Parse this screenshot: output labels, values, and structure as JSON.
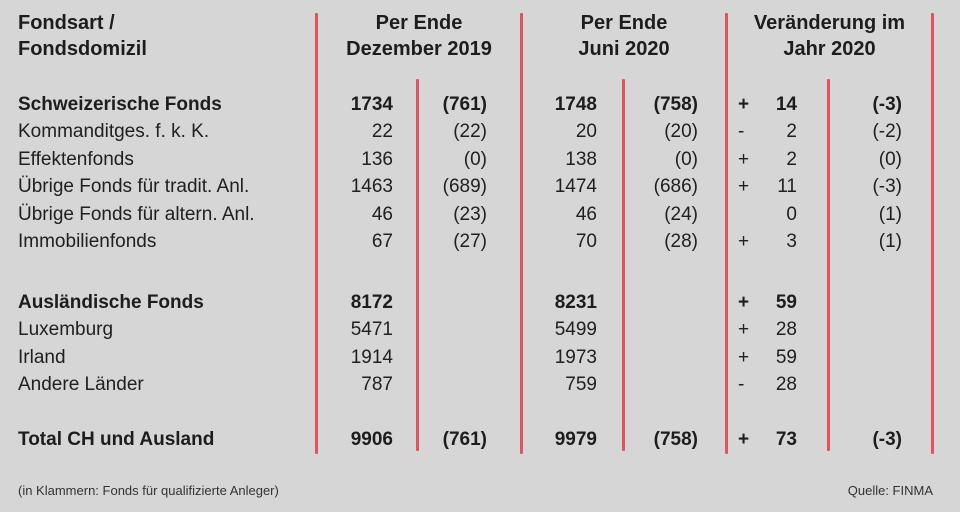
{
  "page": {
    "background_color": "#d5d6d5",
    "divider_color": "#e05460"
  },
  "header": {
    "label_line1": "Fondsart /",
    "label_line2": "Fondsdomizil",
    "dec_line1": "Per Ende",
    "dec_line2": "Dezember 2019",
    "jun_line1": "Per Ende",
    "jun_line2": "Juni 2020",
    "chg_line1": "Veränderung im",
    "chg_line2": "Jahr 2020"
  },
  "table": {
    "sections": [
      {
        "name": "schweizerische-fonds",
        "rows": [
          {
            "label": "Schweizerische Fonds",
            "bold": true,
            "dec_val": "1734",
            "dec_par": "(761)",
            "jun_val": "1748",
            "jun_par": "(758)",
            "chg_sign": "+",
            "chg_val": "14",
            "chg_par": "(-3)"
          },
          {
            "label": "Kommanditges. f. k. K.",
            "bold": false,
            "dec_val": "22",
            "dec_par": "(22)",
            "jun_val": "20",
            "jun_par": "(20)",
            "chg_sign": "-",
            "chg_val": "2",
            "chg_par": "(-2)"
          },
          {
            "label": "Effektenfonds",
            "bold": false,
            "dec_val": "136",
            "dec_par": "(0)",
            "jun_val": "138",
            "jun_par": "(0)",
            "chg_sign": "+",
            "chg_val": "2",
            "chg_par": "(0)"
          },
          {
            "label": "Übrige Fonds für tradit. Anl.",
            "bold": false,
            "dec_val": "1463",
            "dec_par": "(689)",
            "jun_val": "1474",
            "jun_par": "(686)",
            "chg_sign": "+",
            "chg_val": "11",
            "chg_par": "(-3)"
          },
          {
            "label": "Übrige Fonds für altern. Anl.",
            "bold": false,
            "dec_val": "46",
            "dec_par": "(23)",
            "jun_val": "46",
            "jun_par": "(24)",
            "chg_sign": "",
            "chg_val": "0",
            "chg_par": "(1)"
          },
          {
            "label": "Immobilienfonds",
            "bold": false,
            "dec_val": "67",
            "dec_par": "(27)",
            "jun_val": "70",
            "jun_par": "(28)",
            "chg_sign": "+",
            "chg_val": "3",
            "chg_par": "(1)"
          }
        ]
      },
      {
        "name": "auslaendische-fonds",
        "rows": [
          {
            "label": "Ausländische Fonds",
            "bold": true,
            "dec_val": "8172",
            "dec_par": "",
            "jun_val": "8231",
            "jun_par": "",
            "chg_sign": "+",
            "chg_val": "59",
            "chg_par": ""
          },
          {
            "label": "Luxemburg",
            "bold": false,
            "dec_val": "5471",
            "dec_par": "",
            "jun_val": "5499",
            "jun_par": "",
            "chg_sign": "+",
            "chg_val": "28",
            "chg_par": ""
          },
          {
            "label": "Irland",
            "bold": false,
            "dec_val": "1914",
            "dec_par": "",
            "jun_val": "1973",
            "jun_par": "",
            "chg_sign": "+",
            "chg_val": "59",
            "chg_par": ""
          },
          {
            "label": "Andere Länder",
            "bold": false,
            "dec_val": "787",
            "dec_par": "",
            "jun_val": "759",
            "jun_par": "",
            "chg_sign": "-",
            "chg_val": "28",
            "chg_par": ""
          }
        ]
      },
      {
        "name": "total",
        "rows": [
          {
            "label": "Total CH und Ausland",
            "bold": true,
            "dec_val": "9906",
            "dec_par": "(761)",
            "jun_val": "9979",
            "jun_par": "(758)",
            "chg_sign": "+",
            "chg_val": "73",
            "chg_par": "(-3)"
          }
        ]
      }
    ]
  },
  "footer": {
    "note": "(in Klammern: Fonds für qualifizierte Anleger)",
    "source": "Quelle: FINMA"
  }
}
